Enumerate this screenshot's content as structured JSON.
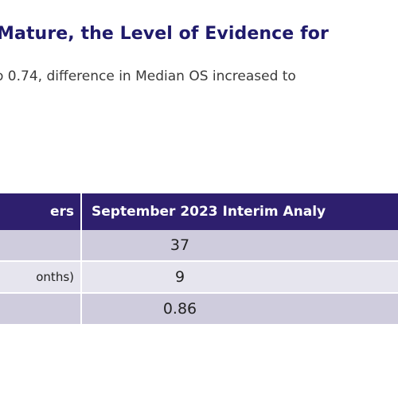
{
  "slide": {
    "title": "Mature, the Level of Evidence for",
    "subtitle": "o 0.74, difference in Median OS increased to",
    "table": {
      "headers": [
        "ers",
        "September 2023 Interim Analy"
      ],
      "rows": [
        {
          "label": "",
          "value": "37"
        },
        {
          "label": "onths)",
          "value": "9"
        },
        {
          "label": "",
          "value": "0.86"
        }
      ]
    }
  }
}
